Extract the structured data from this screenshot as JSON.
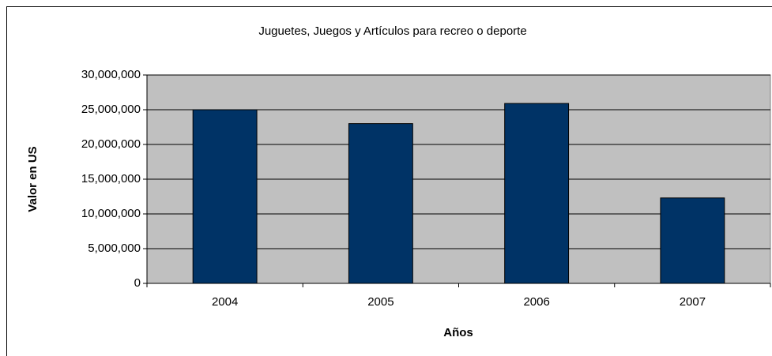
{
  "chart_data": {
    "type": "bar",
    "title": "Juguetes, Juegos y Artículos para recreo o deporte",
    "x_label": "Años",
    "y_label": "Valor en US",
    "categories": [
      "2004",
      "2005",
      "2006",
      "2007"
    ],
    "values": [
      25000000,
      23000000,
      25900000,
      12300000
    ],
    "color": "#003366",
    "ylim": [
      0,
      30000000
    ],
    "yticks": [
      {
        "value": 0,
        "label": "0"
      },
      {
        "value": 5000000,
        "label": "5,000,000"
      },
      {
        "value": 10000000,
        "label": "10,000,000"
      },
      {
        "value": 15000000,
        "label": "15,000,000"
      },
      {
        "value": 20000000,
        "label": "20,000,000"
      },
      {
        "value": 25000000,
        "label": "25,000,000"
      },
      {
        "value": 30000000,
        "label": "30,000,000"
      }
    ],
    "grid": true
  }
}
